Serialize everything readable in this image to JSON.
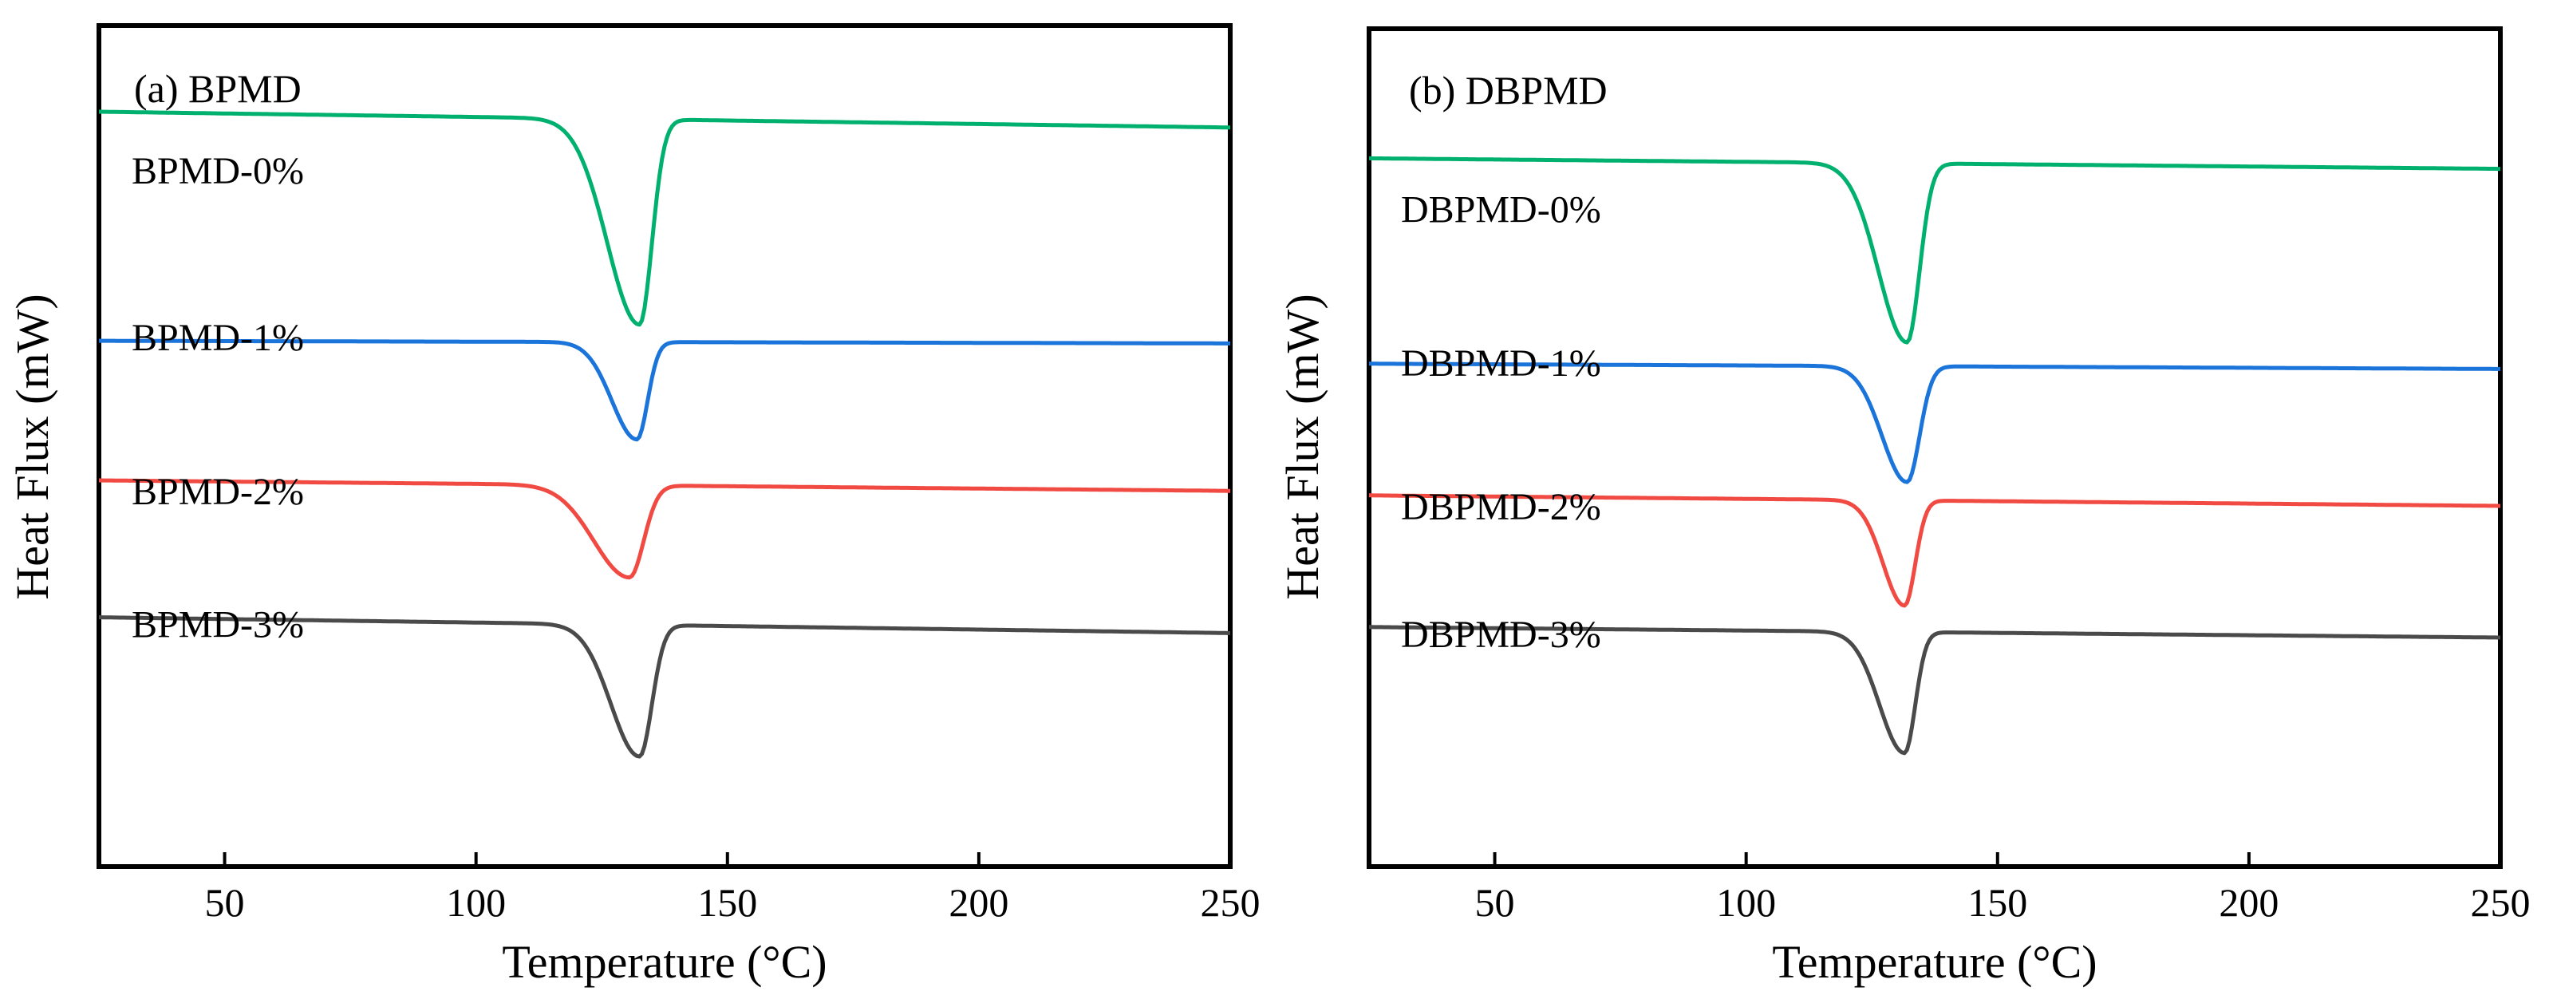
{
  "chart_data": [
    {
      "type": "line",
      "title": "(a) BPMD",
      "xlabel": "Temperature (°C)",
      "ylabel": "Heat Flux (mW)",
      "xlim": [
        25,
        250
      ],
      "xticks": [
        50,
        100,
        150,
        200,
        250
      ],
      "yticks_shown": false,
      "grid": false,
      "series": [
        {
          "name": "BPMD-0%",
          "color": "#00b06f",
          "baseline_start": 0.0,
          "baseline_end": 0.3,
          "peak_T": 132.5,
          "peak_depth": 3.9,
          "onset_width": 9,
          "return_width": 3.5
        },
        {
          "name": "BPMD-1%",
          "color": "#1a74d9",
          "baseline_start": 4.35,
          "baseline_end": 4.4,
          "peak_T": 132.0,
          "peak_depth": 1.85,
          "onset_width": 7,
          "return_width": 3.0
        },
        {
          "name": "BPMD-2%",
          "color": "#f04a43",
          "baseline_start": 7.0,
          "baseline_end": 7.2,
          "peak_T": 130.5,
          "peak_depth": 1.75,
          "onset_width": 10,
          "return_width": 4.0
        },
        {
          "name": "BPMD-3%",
          "color": "#4a4a4a",
          "baseline_start": 9.6,
          "baseline_end": 9.9,
          "peak_T": 132.5,
          "peak_depth": 2.5,
          "onset_width": 8,
          "return_width": 3.5
        }
      ]
    },
    {
      "type": "line",
      "title": "(b) DBPMD",
      "xlabel": "Temperature (°C)",
      "ylabel": "Heat Flux (mW)",
      "xlim": [
        25,
        250
      ],
      "xticks": [
        50,
        100,
        150,
        200,
        250
      ],
      "yticks_shown": false,
      "grid": false,
      "series": [
        {
          "name": "DBPMD-0%",
          "color": "#00b06f",
          "baseline_start": 0.4,
          "baseline_end": 0.6,
          "peak_T": 132.0,
          "peak_depth": 3.4,
          "onset_width": 8,
          "return_width": 3.5
        },
        {
          "name": "DBPMD-1%",
          "color": "#1a74d9",
          "baseline_start": 4.3,
          "baseline_end": 4.4,
          "peak_T": 132.0,
          "peak_depth": 2.2,
          "onset_width": 7,
          "return_width": 3.5
        },
        {
          "name": "DBPMD-2%",
          "color": "#f04a43",
          "baseline_start": 6.8,
          "baseline_end": 7.0,
          "peak_T": 131.5,
          "peak_depth": 2.0,
          "onset_width": 6,
          "return_width": 3.0
        },
        {
          "name": "DBPMD-3%",
          "color": "#4a4a4a",
          "baseline_start": 9.3,
          "baseline_end": 9.5,
          "peak_T": 131.5,
          "peak_depth": 2.3,
          "onset_width": 7,
          "return_width": 3.0
        }
      ]
    }
  ]
}
